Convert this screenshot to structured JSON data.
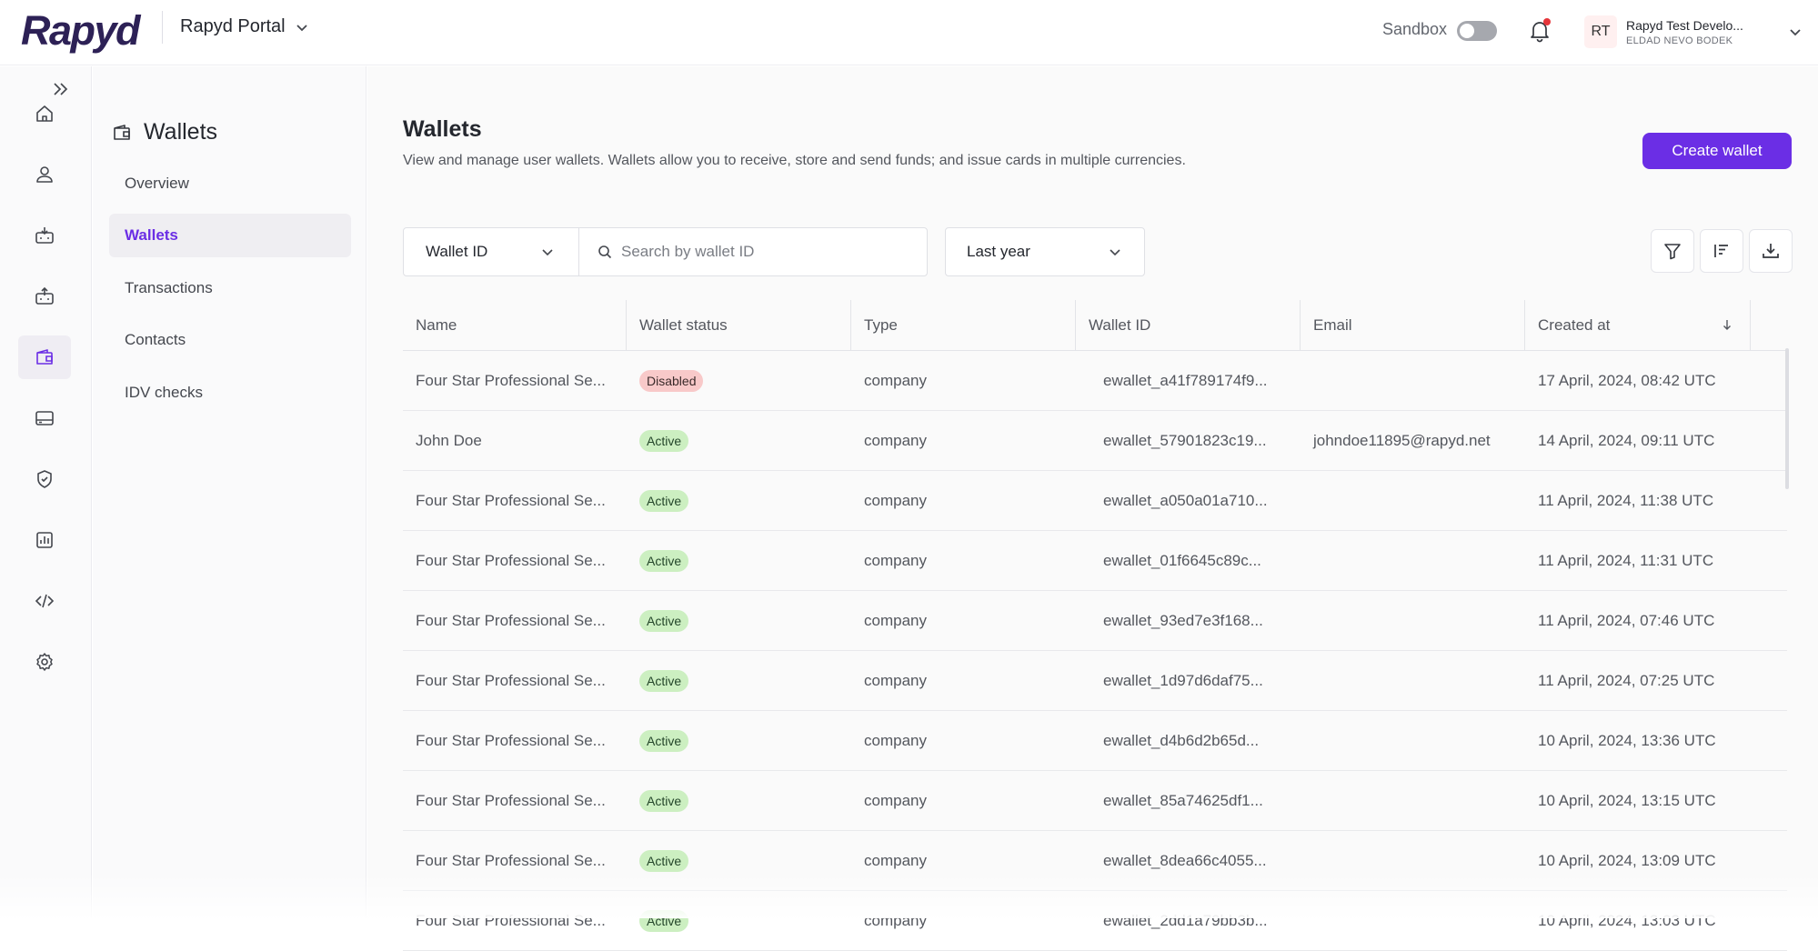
{
  "header": {
    "logo": "Rapyd",
    "portal_label": "Rapyd Portal",
    "sandbox_label": "Sandbox",
    "account": {
      "initials": "RT",
      "name": "Rapyd Test Develo...",
      "subtitle": "ELDAD NEVO BODEK"
    }
  },
  "rail": {
    "items": [
      {
        "icon": "home-icon"
      },
      {
        "icon": "user-icon"
      },
      {
        "icon": "collect-icon"
      },
      {
        "icon": "disburse-icon"
      },
      {
        "icon": "wallet-icon",
        "active": true
      },
      {
        "icon": "card-icon"
      },
      {
        "icon": "shield-check-icon"
      },
      {
        "icon": "reports-icon"
      },
      {
        "icon": "code-icon"
      },
      {
        "icon": "gear-icon"
      }
    ]
  },
  "subnav": {
    "title": "Wallets",
    "items": [
      {
        "label": "Overview"
      },
      {
        "label": "Wallets",
        "active": true
      },
      {
        "label": "Transactions"
      },
      {
        "label": "Contacts"
      },
      {
        "label": "IDV checks"
      }
    ]
  },
  "main": {
    "title": "Wallets",
    "description": "View and manage user wallets. Wallets allow you to receive, store and send funds; and issue cards in multiple currencies.",
    "create_button": "Create wallet",
    "filter": {
      "field": "Wallet ID",
      "search_placeholder": "Search by wallet ID",
      "date_range": "Last year"
    },
    "table": {
      "columns": [
        "Name",
        "Wallet status",
        "Type",
        "Wallet ID",
        "Email",
        "Created at"
      ],
      "rows": [
        {
          "name": "Four Star Professional Se...",
          "status": "Disabled",
          "type": "company",
          "wallet_id": "ewallet_a41f789174f9...",
          "email": "",
          "created": "17 April, 2024, 08:42 UTC"
        },
        {
          "name": "John Doe",
          "status": "Active",
          "type": "company",
          "wallet_id": "ewallet_57901823c19...",
          "email": "johndoe11895@rapyd.net",
          "created": "14 April, 2024, 09:11 UTC"
        },
        {
          "name": "Four Star Professional Se...",
          "status": "Active",
          "type": "company",
          "wallet_id": "ewallet_a050a01a710...",
          "email": "",
          "created": "11 April, 2024, 11:38 UTC"
        },
        {
          "name": "Four Star Professional Se...",
          "status": "Active",
          "type": "company",
          "wallet_id": "ewallet_01f6645c89c...",
          "email": "",
          "created": "11 April, 2024, 11:31 UTC"
        },
        {
          "name": "Four Star Professional Se...",
          "status": "Active",
          "type": "company",
          "wallet_id": "ewallet_93ed7e3f168...",
          "email": "",
          "created": "11 April, 2024, 07:46 UTC"
        },
        {
          "name": "Four Star Professional Se...",
          "status": "Active",
          "type": "company",
          "wallet_id": "ewallet_1d97d6daf75...",
          "email": "",
          "created": "11 April, 2024, 07:25 UTC"
        },
        {
          "name": "Four Star Professional Se...",
          "status": "Active",
          "type": "company",
          "wallet_id": "ewallet_d4b6d2b65d...",
          "email": "",
          "created": "10 April, 2024, 13:36 UTC"
        },
        {
          "name": "Four Star Professional Se...",
          "status": "Active",
          "type": "company",
          "wallet_id": "ewallet_85a74625df1...",
          "email": "",
          "created": "10 April, 2024, 13:15 UTC"
        },
        {
          "name": "Four Star Professional Se...",
          "status": "Active",
          "type": "company",
          "wallet_id": "ewallet_8dea66c4055...",
          "email": "",
          "created": "10 April, 2024, 13:09 UTC"
        },
        {
          "name": "Four Star Professional Se...",
          "status": "Active",
          "type": "company",
          "wallet_id": "ewallet_2dd1a79bb3b...",
          "email": "",
          "created": "10 April, 2024, 13:03 UTC"
        }
      ]
    }
  },
  "colors": {
    "accent": "#6b2ee5",
    "brand": "#2d2156",
    "disabled_badge": "#f8c9c9",
    "active_badge": "#ccefc1",
    "notification_dot": "#e5353a"
  }
}
